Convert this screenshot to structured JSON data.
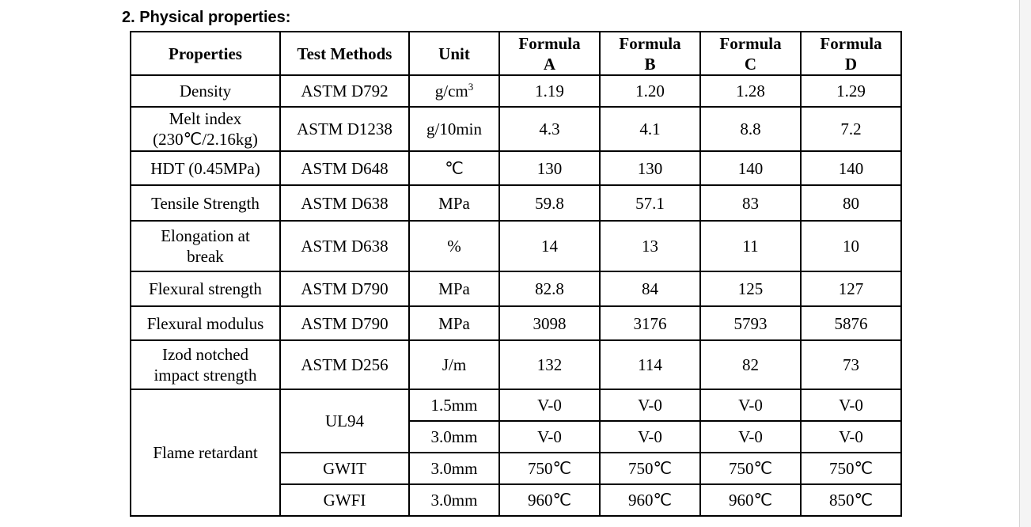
{
  "section_title": "2. Physical properties:",
  "headers": {
    "properties": "Properties",
    "test_methods": "Test Methods",
    "unit": "Unit",
    "formula_a": [
      "Formula",
      "A"
    ],
    "formula_b": [
      "Formula",
      "B"
    ],
    "formula_c": [
      "Formula",
      "C"
    ],
    "formula_d": [
      "Formula",
      "D"
    ]
  },
  "rows": [
    {
      "property": [
        "Density"
      ],
      "method": "ASTM D792",
      "unit": "g/cm",
      "unit_sup": "3",
      "values": [
        "1.19",
        "1.20",
        "1.28",
        "1.29"
      ]
    },
    {
      "property": [
        "Melt index",
        "(230℃/2.16kg)"
      ],
      "method": "ASTM D1238",
      "unit": "g/10min",
      "values": [
        "4.3",
        "4.1",
        "8.8",
        "7.2"
      ]
    },
    {
      "property": [
        "HDT (0.45MPa)"
      ],
      "method": "ASTM D648",
      "unit": "℃",
      "values": [
        "130",
        "130",
        "140",
        "140"
      ]
    },
    {
      "property": [
        "Tensile Strength"
      ],
      "method": "ASTM D638",
      "unit": "MPa",
      "values": [
        "59.8",
        "57.1",
        "83",
        "80"
      ]
    },
    {
      "property": [
        "Elongation at",
        "break"
      ],
      "method": "ASTM D638",
      "unit": "%",
      "values": [
        "14",
        "13",
        "11",
        "10"
      ]
    },
    {
      "property": [
        "Flexural strength"
      ],
      "method": "ASTM D790",
      "unit": "MPa",
      "values": [
        "82.8",
        "84",
        "125",
        "127"
      ]
    },
    {
      "property": [
        "Flexural modulus"
      ],
      "method": "ASTM D790",
      "unit": "MPa",
      "values": [
        "3098",
        "3176",
        "5793",
        "5876"
      ]
    },
    {
      "property": [
        "Izod notched",
        "impact strength"
      ],
      "method": "ASTM D256",
      "unit": "J/m",
      "values": [
        "132",
        "114",
        "82",
        "73"
      ]
    }
  ],
  "flame": {
    "property": "Flame retardant",
    "groups": [
      {
        "method": "UL94",
        "rows": [
          {
            "unit": "1.5mm",
            "values": [
              "V-0",
              "V-0",
              "V-0",
              "V-0"
            ]
          },
          {
            "unit": "3.0mm",
            "values": [
              "V-0",
              "V-0",
              "V-0",
              "V-0"
            ]
          }
        ]
      },
      {
        "method": "GWIT",
        "rows": [
          {
            "unit": "3.0mm",
            "values": [
              "750℃",
              "750℃",
              "750℃",
              "750℃"
            ]
          }
        ]
      },
      {
        "method": "GWFI",
        "rows": [
          {
            "unit": "3.0mm",
            "values": [
              "960℃",
              "960℃",
              "960℃",
              "850℃"
            ]
          }
        ]
      }
    ]
  }
}
